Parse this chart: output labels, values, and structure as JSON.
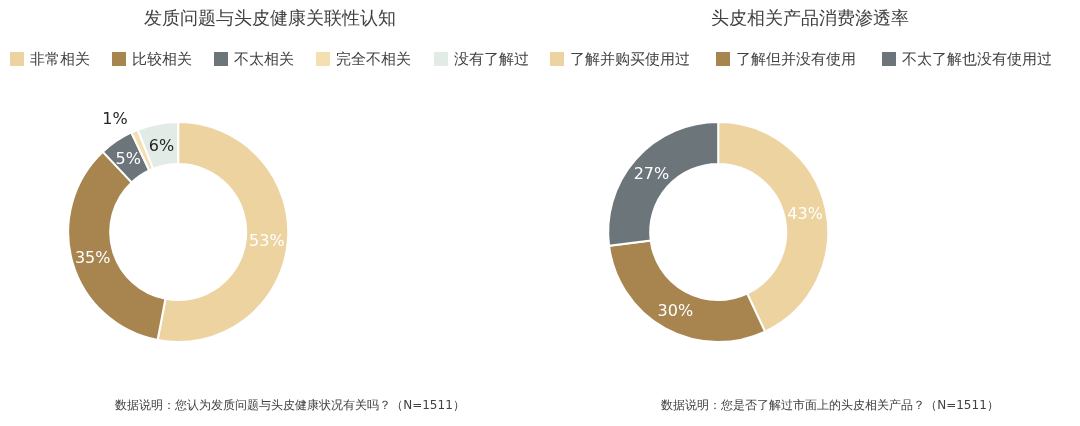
{
  "chart_data": [
    {
      "type": "donut",
      "title": "发质问题与头皮健康关联性认知",
      "categories": [
        "非常相关",
        "比较相关",
        "不太相关",
        "完全不相关",
        "没有了解过"
      ],
      "values": [
        53,
        35,
        5,
        1,
        6
      ],
      "value_labels": [
        "53%",
        "35%",
        "5%",
        "1%",
        "6%"
      ],
      "colors": [
        "#ecd3a0",
        "#a8844f",
        "#6c757a",
        "#f3dfb0",
        "#e3ebe7"
      ],
      "legend": "top",
      "annotations": [
        "数据说明：您认为发质问题与头皮健康状况有关吗？（N=1511）"
      ]
    },
    {
      "type": "donut",
      "title": "头皮相关产品消费渗透率",
      "categories": [
        "了解并购买使用过",
        "了解但并没有使用",
        "不太了解也没有使用过"
      ],
      "values": [
        43,
        30,
        27
      ],
      "value_labels": [
        "43%",
        "30%",
        "27%"
      ],
      "colors": [
        "#ecd3a0",
        "#a8844f",
        "#6c757a"
      ],
      "legend": "top",
      "annotations": [
        "数据说明：您是否了解过市面上的头皮相关产品？（N=1511）"
      ]
    }
  ]
}
